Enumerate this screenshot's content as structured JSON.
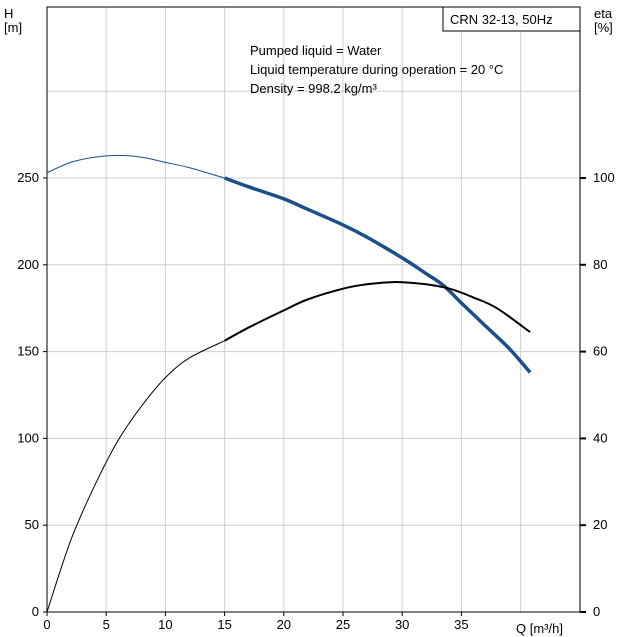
{
  "chart_data": {
    "type": "line",
    "title": "CRN 32-13, 50Hz",
    "annotations": [
      "Pumped liquid = Water",
      "Liquid temperature during operation = 20 °C",
      "Density = 998.2 kg/m³"
    ],
    "x_axis": {
      "label": "Q [m³/h]",
      "range": [
        0,
        45
      ],
      "ticks": [
        "0",
        "5",
        "10",
        "15",
        "20",
        "25",
        "30",
        "35"
      ]
    },
    "y_left": {
      "label_line1": "H",
      "label_line2": "[m]",
      "range": [
        0,
        350
      ],
      "ticks": [
        "0",
        "50",
        "100",
        "150",
        "200",
        "250"
      ]
    },
    "y_right": {
      "label_line1": "eta",
      "label_line2": "[%]",
      "range": [
        0,
        140
      ],
      "ticks": [
        "0",
        "20",
        "40",
        "60",
        "80",
        "100"
      ]
    },
    "grid": true,
    "series": [
      {
        "name": "",
        "axis": "left",
        "color": "#1a4f8a",
        "operating_range": [
          15,
          40.8
        ],
        "x": [
          0,
          2,
          4,
          6,
          8,
          10,
          12,
          15,
          17,
          20,
          22,
          25,
          27,
          30,
          32,
          33.5,
          35,
          37,
          39,
          40.8
        ],
        "y": [
          253,
          259,
          262,
          263,
          262,
          259,
          256,
          250,
          245,
          238,
          232,
          223,
          216,
          204,
          195,
          188,
          178,
          165,
          152,
          138
        ]
      },
      {
        "name": "",
        "axis": "right",
        "color": "#000000",
        "operating_range": [
          15,
          40.8
        ],
        "x": [
          0,
          2,
          4,
          6,
          8,
          10,
          12,
          15,
          17,
          20,
          22,
          25,
          27,
          29,
          30,
          32,
          34,
          36,
          38,
          40.8
        ],
        "y": [
          0,
          16.5,
          29,
          39.5,
          47.5,
          54,
          58.5,
          62.5,
          65.5,
          69.5,
          72,
          74.5,
          75.5,
          76,
          76,
          75.5,
          74.5,
          72.5,
          70,
          64.5
        ]
      }
    ]
  }
}
